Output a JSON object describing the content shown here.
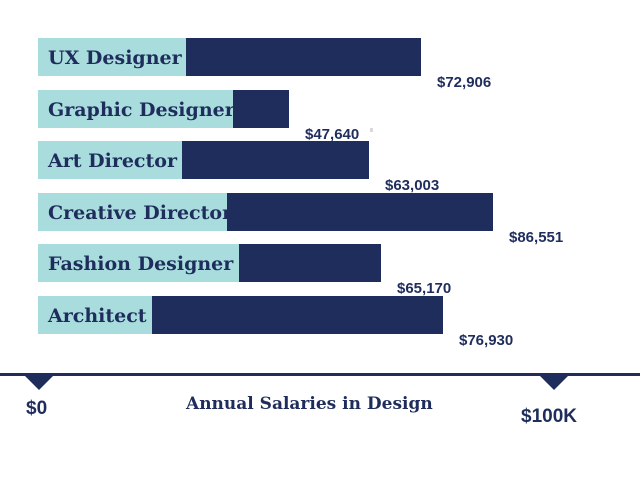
{
  "chart_data": {
    "type": "bar",
    "orientation": "horizontal",
    "title": "Annual Salaries in Design",
    "xlabel": "Annual Salaries in Design",
    "ylabel": "",
    "xlim": [
      0,
      100000
    ],
    "categories": [
      "UX Designer",
      "Graphic Designer",
      "Art Director",
      "Creative Director",
      "Fashion Designer",
      "Architect"
    ],
    "values": [
      72906,
      47640,
      63003,
      86551,
      65170,
      76930
    ],
    "value_labels": [
      "$72,906",
      "$47,640",
      "$63,003",
      "$86,551",
      "$65,170",
      "$76,930"
    ],
    "tick_labels": [
      "$0",
      "$100K"
    ],
    "colors": {
      "bar": "#1f2d5c",
      "label_background": "#a8dcdd",
      "text": "#1f2d5c"
    }
  }
}
